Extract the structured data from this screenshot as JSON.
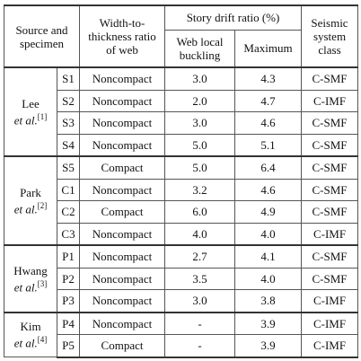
{
  "header": {
    "source": "Source and specimen",
    "ratio": "Width-to-thickness ratio of web",
    "drift": "Story drift ratio (%)",
    "web_local": "Web local buckling",
    "maximum": "Maximum",
    "class": "Seismic system class"
  },
  "groups": [
    {
      "name": "Lee",
      "etal": "et al.",
      "ref": "[1]",
      "rows": [
        [
          "S1",
          "Noncompact",
          "3.0",
          "4.3",
          "C-SMF"
        ],
        [
          "S2",
          "Noncompact",
          "2.0",
          "4.7",
          "C-IMF"
        ],
        [
          "S3",
          "Noncompact",
          "3.0",
          "4.6",
          "C-SMF"
        ],
        [
          "S4",
          "Noncompact",
          "5.0",
          "5.1",
          "C-SMF"
        ]
      ]
    },
    {
      "name": "Park",
      "etal": "et al.",
      "ref": "[2]",
      "rows": [
        [
          "S5",
          "Compact",
          "5.0",
          "6.4",
          "C-SMF"
        ],
        [
          "C1",
          "Noncompact",
          "3.2",
          "4.6",
          "C-SMF"
        ],
        [
          "C2",
          "Compact",
          "6.0",
          "4.9",
          "C-SMF"
        ],
        [
          "C3",
          "Noncompact",
          "4.0",
          "4.0",
          "C-IMF"
        ]
      ]
    },
    {
      "name": "Hwang",
      "etal": "et al.",
      "ref": "[3]",
      "rows": [
        [
          "P1",
          "Noncompact",
          "2.7",
          "4.1",
          "C-SMF"
        ],
        [
          "P2",
          "Noncompact",
          "3.5",
          "4.0",
          "C-SMF"
        ],
        [
          "P3",
          "Noncompact",
          "3.0",
          "3.8",
          "C-IMF"
        ]
      ]
    },
    {
      "name": "Kim",
      "etal": "et al.",
      "ref": "[4]",
      "rows": [
        [
          "P4",
          "Noncompact",
          "-",
          "3.9",
          "C-IMF"
        ],
        [
          "P5",
          "Compact",
          "-",
          "3.9",
          "C-IMF"
        ]
      ]
    }
  ]
}
